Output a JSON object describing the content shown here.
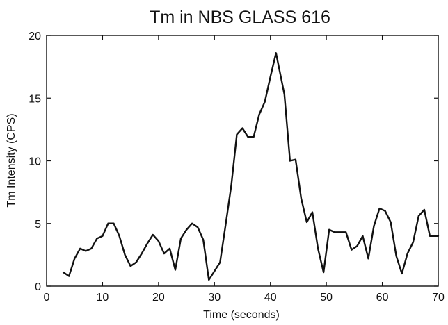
{
  "chart_data": {
    "type": "line",
    "title": "Tm in NBS GLASS 616",
    "xlabel": "Time (seconds)",
    "ylabel": "Tm Intensity (CPS)",
    "xlim": [
      0,
      70
    ],
    "ylim": [
      0,
      20
    ],
    "xticks": [
      0,
      10,
      20,
      30,
      40,
      50,
      60,
      70
    ],
    "yticks": [
      0,
      5,
      10,
      15,
      20
    ],
    "grid": false,
    "legend": "none",
    "line_color": "#111111",
    "series": [
      {
        "x": [
          3,
          4,
          5,
          6,
          7,
          8,
          9,
          10,
          11,
          12,
          13,
          14,
          15,
          16,
          17,
          18,
          19,
          20,
          21,
          22,
          23,
          24,
          25,
          26,
          27,
          28,
          29,
          30,
          31,
          32,
          33,
          34,
          35,
          36,
          37,
          38,
          39,
          40,
          41,
          42.5,
          43.5,
          44.5,
          45.5,
          46.5,
          47.5,
          48.5,
          49.5,
          50.5,
          51.5,
          52.5,
          53.5,
          54.5,
          55.5,
          56.5,
          57.5,
          58.5,
          59.5,
          60.5,
          61.5,
          62.5,
          63.5,
          64.5,
          65.5,
          66.5,
          67.5,
          68.5,
          69.5,
          70
        ],
        "values": [
          1.1,
          0.8,
          2.2,
          3.0,
          2.8,
          3.0,
          3.8,
          4.0,
          5.0,
          5.0,
          4.0,
          2.5,
          1.6,
          1.9,
          2.6,
          3.4,
          4.1,
          3.6,
          2.6,
          3.0,
          1.3,
          3.8,
          4.5,
          5.0,
          4.7,
          3.7,
          0.5,
          1.2,
          1.9,
          4.9,
          8.0,
          12.1,
          12.6,
          11.9,
          11.9,
          13.7,
          14.7,
          16.7,
          18.6,
          15.3,
          10.0,
          10.1,
          7.0,
          5.1,
          5.9,
          3.0,
          1.1,
          4.5,
          4.3,
          4.3,
          4.3,
          2.9,
          3.2,
          4.0,
          2.2,
          4.8,
          6.2,
          6.0,
          5.1,
          2.4,
          1.0,
          2.6,
          3.5,
          5.6,
          6.1,
          4.0,
          4.0,
          4.0
        ]
      }
    ]
  }
}
